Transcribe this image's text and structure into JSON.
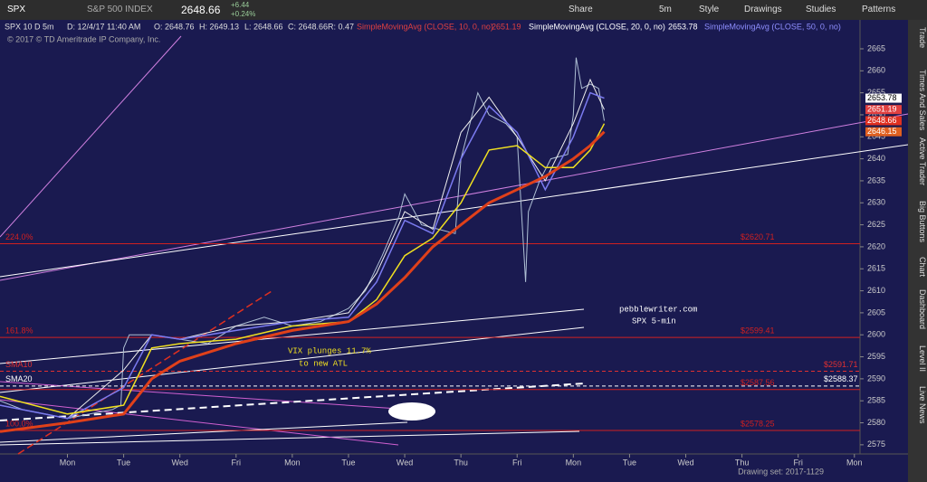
{
  "toolbar": {
    "symbol": "SPX",
    "description": "S&P 500 INDEX",
    "last": "2648.66",
    "change": "+6.44",
    "change_pct": "+0.24%",
    "buttons": [
      "Share",
      "5m",
      "Style",
      "Drawings",
      "Studies",
      "Patterns"
    ]
  },
  "info_bar": {
    "period": "SPX 10 D 5m",
    "date": "D: 12/4/17 11:40 AM",
    "open": "O: 2648.76",
    "high": "H: 2649.13",
    "low": "L: 2648.66",
    "close": "C: 2648.66",
    "range": "R: 0.47"
  },
  "copyright": "© 2017 © TD Ameritrade IP Company, Inc.",
  "side_tabs": [
    "Trade",
    "Times And Sales",
    "Active Trader",
    "Big Buttons",
    "Chart",
    "Dashboard",
    "Level II",
    "Live News"
  ],
  "drawing_set": "Drawing set: 2017-1129",
  "chart_data": {
    "type": "line",
    "ylim": [
      2572.3,
      2668.9
    ],
    "yticks": [
      2575,
      2580,
      2585,
      2590,
      2595,
      2600,
      2605,
      2610,
      2615,
      2620,
      2625,
      2630,
      2635,
      2640,
      2645,
      2650,
      2655,
      2660,
      2665
    ],
    "xlim": [
      -1.2,
      14.1
    ],
    "xticks": [
      {
        "value": 0,
        "label": "Mon"
      },
      {
        "value": 1,
        "label": "Tue"
      },
      {
        "value": 2,
        "label": "Wed"
      },
      {
        "value": 3,
        "label": "Fri"
      },
      {
        "value": 4,
        "label": "Mon"
      },
      {
        "value": 5,
        "label": "Tue"
      },
      {
        "value": 6,
        "label": "Wed"
      },
      {
        "value": 7,
        "label": "Thu"
      },
      {
        "value": 8,
        "label": "Fri"
      },
      {
        "value": 9,
        "label": "Mon"
      },
      {
        "value": 10,
        "label": "Tue"
      },
      {
        "value": 11,
        "label": "Wed"
      },
      {
        "value": 12,
        "label": "Thu"
      },
      {
        "value": 13,
        "label": "Fri"
      },
      {
        "value": 14,
        "label": "Mon"
      }
    ],
    "series": [
      {
        "name": "SPX",
        "color": "#aebfd4",
        "width": 1,
        "x": [
          -1.2,
          -0.8,
          -0.4,
          0,
          0.4,
          0.8,
          0.95,
          1.0,
          1.1,
          1.5,
          2,
          2.5,
          3,
          3.5,
          4,
          4.5,
          5,
          5.3,
          5.6,
          5.9,
          6.0,
          6.3,
          6.6,
          6.9,
          7.0,
          7.3,
          7.5,
          7.8,
          8.0,
          8.15,
          8.2,
          8.4,
          8.6,
          8.9,
          9.0,
          9.05,
          9.15,
          9.3,
          9.45,
          9.55
        ],
        "values": [
          2585,
          2583,
          2582,
          2581,
          2582,
          2583,
          2584,
          2597,
          2600,
          2600,
          2599,
          2598,
          2602,
          2604,
          2602,
          2603,
          2606,
          2610,
          2618,
          2627,
          2632,
          2625,
          2624,
          2623,
          2640,
          2655,
          2650,
          2648,
          2645,
          2612,
          2628,
          2635,
          2640,
          2641,
          2650,
          2663,
          2656,
          2657,
          2656,
          2648.66
        ]
      },
      {
        "name": "SimpleMovingAvg (CLOSE, 10, 0, no)",
        "color": "#f0f0f0",
        "width": 1,
        "x": [
          -1.2,
          0,
          1,
          1.5,
          2,
          3,
          4,
          5,
          5.5,
          6,
          6.5,
          7,
          7.5,
          8,
          8.5,
          9,
          9.3,
          9.55
        ],
        "values": [
          2584,
          2581,
          2592,
          2600,
          2599,
          2602,
          2603,
          2605,
          2614,
          2628,
          2624,
          2646,
          2654,
          2645,
          2635,
          2648,
          2658,
          2651.19
        ]
      },
      {
        "name": "SimpleMovingAvg (CLOSE, 20, 0, no)",
        "color": "#7b7bf0",
        "width": 1.5,
        "x": [
          -1.2,
          0,
          1,
          1.5,
          2,
          3,
          4,
          5,
          5.5,
          6,
          6.5,
          7,
          7.5,
          8,
          8.5,
          9,
          9.3,
          9.55
        ],
        "values": [
          2584,
          2581,
          2588,
          2600,
          2599,
          2601,
          2603,
          2604,
          2612,
          2626,
          2623,
          2640,
          2652,
          2646,
          2633,
          2645,
          2655,
          2653.78
        ]
      },
      {
        "color": "#f0e020",
        "width": 1.5,
        "x": [
          -1.2,
          0,
          1,
          1.5,
          2,
          3,
          4,
          5,
          5.5,
          6,
          6.5,
          7,
          7.5,
          8,
          8.5,
          9,
          9.3,
          9.55
        ],
        "values": [
          2586,
          2582,
          2584,
          2597,
          2598,
          2599,
          2602,
          2603,
          2608,
          2618,
          2622,
          2630,
          2642,
          2643,
          2638,
          2638,
          2642,
          2648
        ]
      },
      {
        "name": "SimpleMovingAvg (CLOSE, 50, 0, no)",
        "color": "#e0401a",
        "width": 3,
        "x": [
          -1.2,
          0,
          1,
          1.5,
          2,
          3,
          4,
          5,
          5.5,
          6,
          6.5,
          7,
          7.5,
          8,
          8.5,
          9,
          9.3,
          9.55
        ],
        "values": [
          2578,
          2580,
          2582,
          2590,
          2594,
          2598,
          2601,
          2603,
          2607,
          2613,
          2620,
          2625,
          2630,
          2633,
          2636,
          2640,
          2643,
          2646.15
        ]
      }
    ],
    "levels": [
      {
        "label": "224.0%",
        "value": 2620.71,
        "value_label": "$2620.71",
        "color": "#d02020"
      },
      {
        "label": "161.8%",
        "value": 2599.41,
        "value_label": "$2599.41",
        "color": "#d02020"
      },
      {
        "label": "100.0%",
        "value": 2578.25,
        "value_label": "$2578.25",
        "color": "#d02020"
      },
      {
        "label": "SMA10",
        "value": 2591.71,
        "value_label": "$2591.71",
        "color": "#e03030"
      },
      {
        "label": "SMA20",
        "value": 2588.37,
        "value_label": "$2588.37",
        "color": "#ffffff"
      },
      {
        "value": 2587.56,
        "value_label": "$2587.56",
        "color": "#d02020"
      }
    ],
    "price_tags": [
      {
        "value": 2653.78,
        "color": "#ffffff"
      },
      {
        "value": 2651.19,
        "color": "#e04040"
      },
      {
        "value": 2648.66,
        "color": "#e03020"
      },
      {
        "value": 2646.15,
        "color": "#e06020"
      }
    ],
    "annotations": [
      "pebblewriter.com",
      "SPX 5-min",
      "VIX plunges 11.7%",
      "to new ATL"
    ]
  }
}
